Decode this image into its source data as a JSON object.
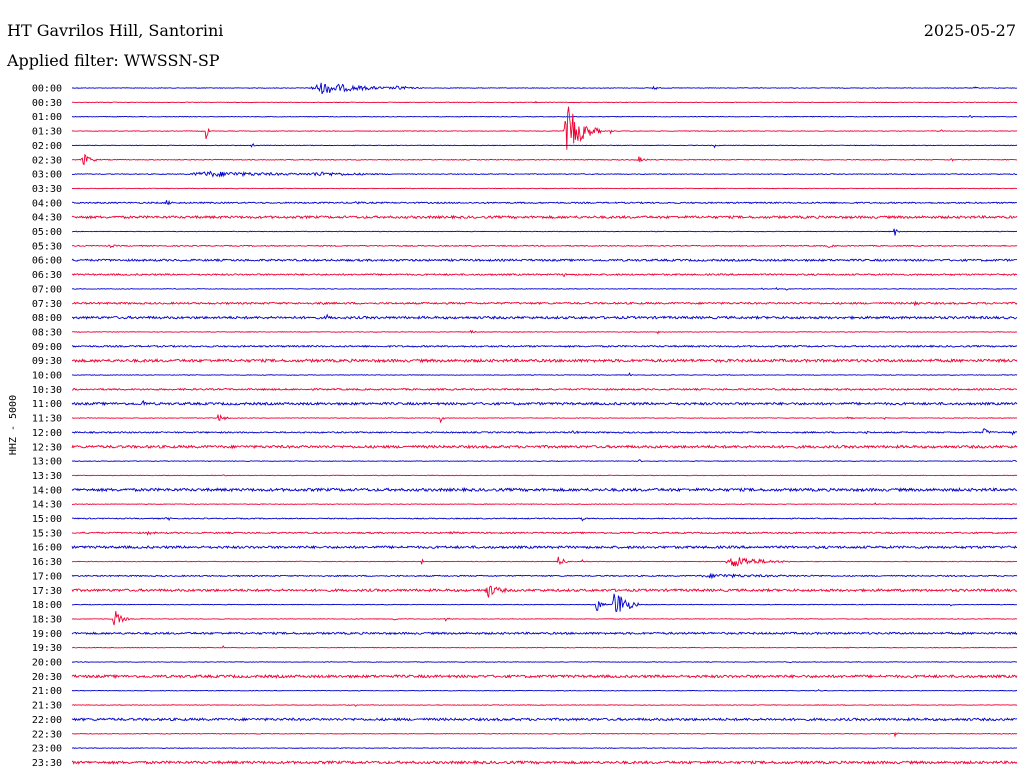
{
  "header": {
    "title": "HT Gavrilos Hill, Santorini",
    "filter": "Applied filter: WWSSN-SP",
    "date": "2025-05-27"
  },
  "chart_data": {
    "type": "line",
    "title": "HT Gavrilos Hill, Santorini",
    "subtitle": "Applied filter: WWSSN-SP",
    "date": "2025-05-27",
    "ylabel": "HHZ - 5000",
    "xlabel": "",
    "colors": [
      "#0000cc",
      "#ee0033"
    ],
    "rows": [
      {
        "label": "00:00",
        "noise": 0.3,
        "events": [
          {
            "x": 0.265,
            "w": 0.09,
            "a": 6
          },
          {
            "x": 0.345,
            "w": 0.03,
            "a": 1.5
          },
          {
            "x": 0.615,
            "w": 0.008,
            "a": 3
          },
          {
            "x": 0.955,
            "w": 0.004,
            "a": 2
          }
        ]
      },
      {
        "label": "00:30",
        "noise": 0.3,
        "events": [
          {
            "x": 0.49,
            "w": 0.004,
            "a": 1
          }
        ]
      },
      {
        "label": "01:00",
        "noise": 0.3,
        "events": [
          {
            "x": 0.95,
            "w": 0.004,
            "a": 1.5
          }
        ]
      },
      {
        "label": "01:30",
        "noise": 0.3,
        "events": [
          {
            "x": 0.142,
            "w": 0.006,
            "a": 10
          },
          {
            "x": 0.525,
            "w": 0.035,
            "a": 25
          },
          {
            "x": 0.57,
            "w": 0.006,
            "a": 2
          },
          {
            "x": 0.92,
            "w": 0.004,
            "a": 1
          }
        ]
      },
      {
        "label": "02:00",
        "noise": 0.3,
        "events": [
          {
            "x": 0.19,
            "w": 0.006,
            "a": 3
          },
          {
            "x": 0.68,
            "w": 0.005,
            "a": 2
          }
        ]
      },
      {
        "label": "02:30",
        "noise": 0.4,
        "events": [
          {
            "x": 0.012,
            "w": 0.015,
            "a": 7
          },
          {
            "x": 0.6,
            "w": 0.01,
            "a": 3
          },
          {
            "x": 0.93,
            "w": 0.006,
            "a": 2
          }
        ]
      },
      {
        "label": "03:00",
        "noise": 0.4,
        "events": [
          {
            "x": 0.145,
            "w": 0.17,
            "a": 2.5
          },
          {
            "x": 0.26,
            "w": 0.08,
            "a": 1.5
          }
        ]
      },
      {
        "label": "03:30",
        "noise": 0.3,
        "events": []
      },
      {
        "label": "04:00",
        "noise": 0.7,
        "events": [
          {
            "x": 0.1,
            "w": 0.01,
            "a": 2
          },
          {
            "x": 0.3,
            "w": 0.008,
            "a": 1.5
          }
        ]
      },
      {
        "label": "04:30",
        "noise": 1.2,
        "events": []
      },
      {
        "label": "05:00",
        "noise": 0.3,
        "events": [
          {
            "x": 0.87,
            "w": 0.006,
            "a": 6
          }
        ]
      },
      {
        "label": "05:30",
        "noise": 0.5,
        "events": [
          {
            "x": 0.04,
            "w": 0.01,
            "a": 1.5
          },
          {
            "x": 0.8,
            "w": 0.01,
            "a": 1.5
          }
        ]
      },
      {
        "label": "06:00",
        "noise": 1.0,
        "events": []
      },
      {
        "label": "06:30",
        "noise": 0.8,
        "events": [
          {
            "x": 0.52,
            "w": 0.004,
            "a": 2
          }
        ]
      },
      {
        "label": "07:00",
        "noise": 0.3,
        "events": [
          {
            "x": 0.73,
            "w": 0.003,
            "a": 2
          },
          {
            "x": 0.745,
            "w": 0.003,
            "a": 2.5
          },
          {
            "x": 0.755,
            "w": 0.003,
            "a": 3
          }
        ]
      },
      {
        "label": "07:30",
        "noise": 0.9,
        "events": [
          {
            "x": 0.263,
            "w": 0.004,
            "a": 3
          },
          {
            "x": 0.89,
            "w": 0.006,
            "a": 7
          }
        ]
      },
      {
        "label": "08:00",
        "noise": 1.2,
        "events": [
          {
            "x": 0.27,
            "w": 0.004,
            "a": 2
          }
        ]
      },
      {
        "label": "08:30",
        "noise": 0.3,
        "events": [
          {
            "x": 0.42,
            "w": 0.008,
            "a": 5
          },
          {
            "x": 0.62,
            "w": 0.003,
            "a": 1.5
          }
        ]
      },
      {
        "label": "09:00",
        "noise": 0.8,
        "events": []
      },
      {
        "label": "09:30",
        "noise": 1.4,
        "events": []
      },
      {
        "label": "10:00",
        "noise": 0.3,
        "events": [
          {
            "x": 0.59,
            "w": 0.003,
            "a": 1.5
          }
        ]
      },
      {
        "label": "10:30",
        "noise": 0.8,
        "events": [
          {
            "x": 0.16,
            "w": 0.004,
            "a": 1
          }
        ]
      },
      {
        "label": "11:00",
        "noise": 1.2,
        "events": [
          {
            "x": 0.075,
            "w": 0.004,
            "a": 6
          }
        ]
      },
      {
        "label": "11:30",
        "noise": 0.3,
        "events": [
          {
            "x": 0.155,
            "w": 0.012,
            "a": 5
          },
          {
            "x": 0.39,
            "w": 0.006,
            "a": 4
          },
          {
            "x": 0.82,
            "w": 0.008,
            "a": 2
          },
          {
            "x": 0.86,
            "w": 0.003,
            "a": 1.5
          }
        ]
      },
      {
        "label": "12:00",
        "noise": 0.7,
        "events": [
          {
            "x": 0.53,
            "w": 0.008,
            "a": 2
          },
          {
            "x": 0.84,
            "w": 0.005,
            "a": 1.5
          },
          {
            "x": 0.965,
            "w": 0.01,
            "a": 4
          },
          {
            "x": 0.995,
            "w": 0.004,
            "a": 3
          }
        ]
      },
      {
        "label": "12:30",
        "noise": 1.3,
        "events": []
      },
      {
        "label": "13:00",
        "noise": 0.3,
        "events": [
          {
            "x": 0.6,
            "w": 0.004,
            "a": 2
          },
          {
            "x": 0.995,
            "w": 0.004,
            "a": 2
          }
        ]
      },
      {
        "label": "13:30",
        "noise": 0.3,
        "events": [
          {
            "x": 0.16,
            "w": 0.004,
            "a": 1
          }
        ]
      },
      {
        "label": "14:00",
        "noise": 1.4,
        "events": []
      },
      {
        "label": "14:30",
        "noise": 0.3,
        "events": [
          {
            "x": 0.85,
            "w": 0.004,
            "a": 2
          }
        ]
      },
      {
        "label": "15:00",
        "noise": 0.5,
        "events": [
          {
            "x": 0.1,
            "w": 0.008,
            "a": 2.5
          },
          {
            "x": 0.54,
            "w": 0.006,
            "a": 2
          }
        ]
      },
      {
        "label": "15:30",
        "noise": 0.7,
        "events": [
          {
            "x": 0.08,
            "w": 0.01,
            "a": 1.5
          },
          {
            "x": 0.4,
            "w": 0.01,
            "a": 1.5
          }
        ]
      },
      {
        "label": "16:00",
        "noise": 1.2,
        "events": []
      },
      {
        "label": "16:30",
        "noise": 0.3,
        "events": [
          {
            "x": 0.24,
            "w": 0.003,
            "a": 1.5
          },
          {
            "x": 0.37,
            "w": 0.004,
            "a": 3
          },
          {
            "x": 0.515,
            "w": 0.01,
            "a": 8
          },
          {
            "x": 0.54,
            "w": 0.004,
            "a": 2
          },
          {
            "x": 0.7,
            "w": 0.06,
            "a": 6
          }
        ]
      },
      {
        "label": "17:00",
        "noise": 0.6,
        "events": [
          {
            "x": 0.68,
            "w": 0.12,
            "a": 1.5
          }
        ]
      },
      {
        "label": "17:30",
        "noise": 1.2,
        "events": [
          {
            "x": 0.44,
            "w": 0.02,
            "a": 7
          }
        ]
      },
      {
        "label": "18:00",
        "noise": 0.3,
        "events": [
          {
            "x": 0.555,
            "w": 0.01,
            "a": 8
          },
          {
            "x": 0.575,
            "w": 0.025,
            "a": 18
          },
          {
            "x": 0.93,
            "w": 0.006,
            "a": 2
          }
        ]
      },
      {
        "label": "18:30",
        "noise": 0.3,
        "events": [
          {
            "x": 0.045,
            "w": 0.015,
            "a": 10
          },
          {
            "x": 0.34,
            "w": 0.006,
            "a": 2
          },
          {
            "x": 0.395,
            "w": 0.008,
            "a": 2
          }
        ]
      },
      {
        "label": "19:00",
        "noise": 1.0,
        "events": []
      },
      {
        "label": "19:30",
        "noise": 0.3,
        "events": [
          {
            "x": 0.16,
            "w": 0.003,
            "a": 1.5
          },
          {
            "x": 0.82,
            "w": 0.004,
            "a": 1.5
          }
        ]
      },
      {
        "label": "20:00",
        "noise": 0.3,
        "events": [
          {
            "x": 0.76,
            "w": 0.003,
            "a": 1
          }
        ]
      },
      {
        "label": "20:30",
        "noise": 1.3,
        "events": []
      },
      {
        "label": "21:00",
        "noise": 0.3,
        "events": [
          {
            "x": 0.79,
            "w": 0.003,
            "a": 1
          }
        ]
      },
      {
        "label": "21:30",
        "noise": 0.3,
        "events": [
          {
            "x": 0.3,
            "w": 0.003,
            "a": 1
          }
        ]
      },
      {
        "label": "22:00",
        "noise": 1.2,
        "events": []
      },
      {
        "label": "22:30",
        "noise": 0.3,
        "events": [
          {
            "x": 0.87,
            "w": 0.008,
            "a": 3
          }
        ]
      },
      {
        "label": "23:00",
        "noise": 0.3,
        "events": []
      },
      {
        "label": "23:30",
        "noise": 1.3,
        "events": []
      }
    ]
  }
}
